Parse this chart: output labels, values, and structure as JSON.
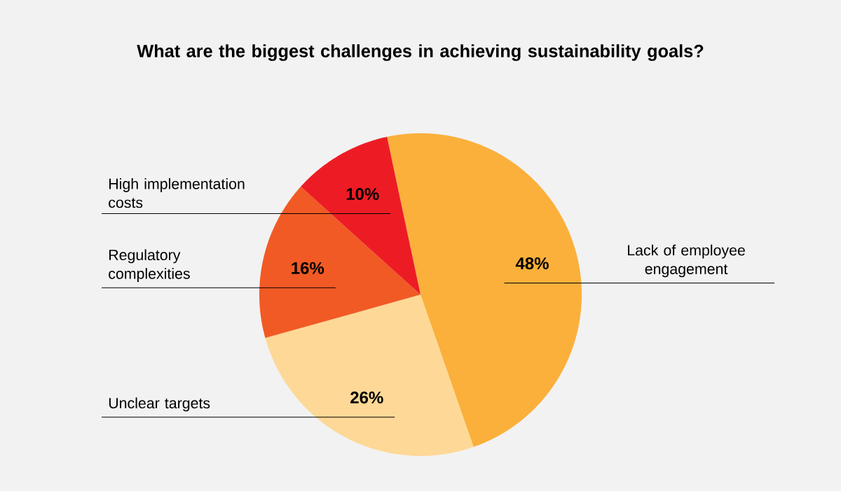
{
  "chart_data": {
    "type": "pie",
    "title": "What are the biggest challenges in achieving sustainability goals?",
    "categories": [
      "Lack of employee engagement",
      "Unclear targets",
      "Regulatory complexities",
      "High implementation costs"
    ],
    "values": [
      48,
      26,
      16,
      10
    ],
    "colors": [
      "#fbb03b",
      "#fed896",
      "#f15a24",
      "#ed1c24"
    ],
    "value_labels": [
      "48%",
      "26%",
      "16%",
      "10%"
    ]
  }
}
